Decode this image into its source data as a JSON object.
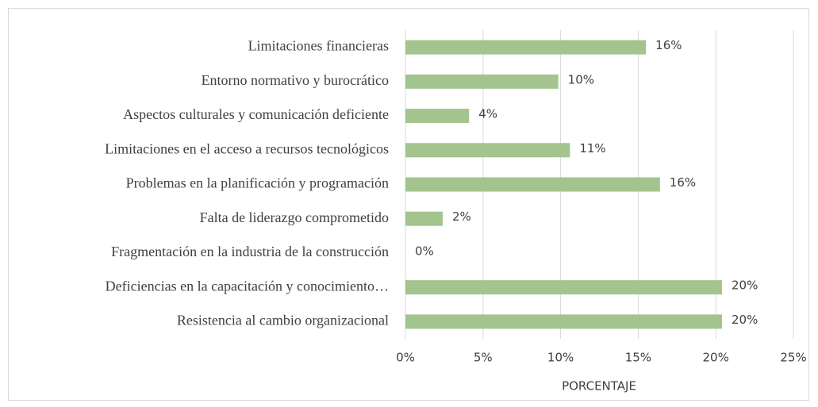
{
  "chart_data": {
    "type": "bar",
    "orientation": "horizontal",
    "categories": [
      "Limitaciones financieras",
      "Entorno normativo y burocrático",
      "Aspectos culturales y comunicación deficiente",
      "Limitaciones en el acceso a recursos tecnológicos",
      "Problemas en la planificación y programación",
      "Falta de liderazgo comprometido",
      "Fragmentación en la industria de la construcción",
      "Deficiencias en la capacitación y conocimiento…",
      "Resistencia al cambio organizacional"
    ],
    "values": [
      15.5,
      9.85,
      4.1,
      10.6,
      16.4,
      2.4,
      0,
      20.4,
      20.4
    ],
    "value_labels": [
      "16%",
      "10%",
      "4%",
      "11%",
      "16%",
      "2%",
      "0%",
      "20%",
      "20%"
    ],
    "color": "#a3c48f",
    "xlabel": "PORCENTAJE",
    "xlim": [
      0,
      25
    ],
    "xticks": [
      {
        "value": 0,
        "label": "0%"
      },
      {
        "value": 5,
        "label": "5%"
      },
      {
        "value": 10,
        "label": "10%"
      },
      {
        "value": 15,
        "label": "15%"
      },
      {
        "value": 20,
        "label": "20%"
      },
      {
        "value": 25,
        "label": "25%"
      }
    ],
    "grid": true
  }
}
